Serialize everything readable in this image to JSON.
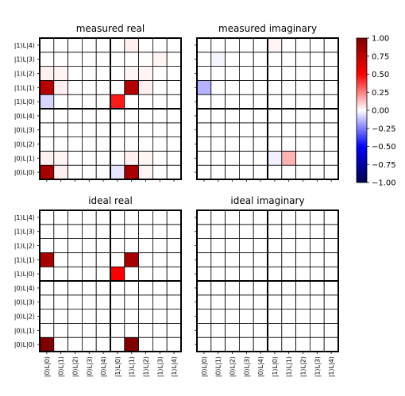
{
  "chart_data": {
    "type": "heatmap",
    "row_labels": [
      "|0⟩L|0⟩",
      "|0⟩L|1⟩",
      "|0⟩L|2⟩",
      "|0⟩L|3⟩",
      "|0⟩L|4⟩",
      "|1⟩L|0⟩",
      "|1⟩L|1⟩",
      "|1⟩L|2⟩",
      "|1⟩L|3⟩",
      "|1⟩L|4⟩"
    ],
    "col_labels": [
      "|0⟩L|0⟩",
      "|0⟩L|1⟩",
      "|0⟩L|2⟩",
      "|0⟩L|3⟩",
      "|0⟩L|4⟩",
      "|1⟩L|0⟩",
      "|1⟩L|1⟩",
      "|1⟩L|2⟩",
      "|1⟩L|3⟩",
      "|1⟩L|4⟩"
    ],
    "colorbar": {
      "colormap": "seismic",
      "vmin": -1.0,
      "vmax": 1.0,
      "ticks": [
        "1.00",
        "0.75",
        "0.50",
        "0.25",
        "0.00",
        "−0.25",
        "−0.50",
        "−0.75",
        "−1.00"
      ]
    },
    "panels": [
      {
        "title": "measured real",
        "values": [
          [
            0.85,
            0.03,
            0.0,
            0.0,
            0.0,
            -0.05,
            0.85,
            0.02,
            0.0,
            0.0
          ],
          [
            0.03,
            0.02,
            0.0,
            0.0,
            0.0,
            0.0,
            0.03,
            0.02,
            0.0,
            0.0
          ],
          [
            0.0,
            0.0,
            0.0,
            0.0,
            0.0,
            0.0,
            0.0,
            0.0,
            0.0,
            0.0
          ],
          [
            0.0,
            0.0,
            0.0,
            0.0,
            0.0,
            0.0,
            0.0,
            0.0,
            0.0,
            0.0
          ],
          [
            0.0,
            0.0,
            0.0,
            0.0,
            0.0,
            0.0,
            0.0,
            0.0,
            0.0,
            0.0
          ],
          [
            -0.08,
            0.0,
            0.0,
            0.0,
            0.0,
            0.45,
            0.0,
            0.0,
            0.0,
            0.0
          ],
          [
            0.78,
            0.03,
            0.0,
            0.0,
            0.0,
            0.0,
            0.8,
            0.03,
            0.0,
            0.0
          ],
          [
            0.03,
            0.02,
            0.0,
            0.0,
            0.0,
            0.0,
            0.02,
            0.02,
            0.0,
            0.0
          ],
          [
            0.0,
            0.0,
            0.0,
            0.0,
            0.0,
            0.0,
            0.0,
            0.0,
            0.02,
            0.0
          ],
          [
            0.0,
            0.0,
            0.0,
            0.0,
            0.0,
            0.0,
            0.03,
            0.0,
            0.0,
            0.0
          ]
        ]
      },
      {
        "title": "measured imaginary",
        "values": [
          [
            0.0,
            0.0,
            0.0,
            0.0,
            0.0,
            0.0,
            0.0,
            0.0,
            0.0,
            0.0
          ],
          [
            0.0,
            0.0,
            0.0,
            0.0,
            0.0,
            -0.03,
            0.15,
            0.0,
            0.0,
            0.0
          ],
          [
            0.0,
            0.0,
            0.0,
            0.0,
            0.0,
            0.0,
            0.0,
            0.0,
            0.0,
            0.0
          ],
          [
            0.0,
            0.0,
            0.0,
            0.0,
            0.0,
            0.0,
            0.0,
            0.0,
            0.0,
            0.0
          ],
          [
            0.0,
            0.0,
            0.0,
            0.0,
            0.0,
            0.0,
            0.0,
            0.0,
            0.0,
            0.0
          ],
          [
            0.0,
            0.0,
            0.0,
            0.0,
            0.0,
            0.0,
            0.0,
            0.0,
            0.0,
            0.0
          ],
          [
            -0.15,
            0.0,
            0.0,
            0.0,
            0.0,
            0.0,
            0.0,
            0.0,
            0.0,
            0.0
          ],
          [
            0.0,
            0.0,
            0.0,
            0.0,
            0.0,
            0.0,
            0.0,
            0.0,
            0.0,
            0.0
          ],
          [
            0.0,
            -0.02,
            0.0,
            0.0,
            0.0,
            0.0,
            0.0,
            0.0,
            0.0,
            0.0
          ],
          [
            0.0,
            0.0,
            0.0,
            0.0,
            0.0,
            0.02,
            0.0,
            0.0,
            0.0,
            0.0
          ]
        ]
      },
      {
        "title": "ideal real",
        "values": [
          [
            1.0,
            0.0,
            0.0,
            0.0,
            0.0,
            0.0,
            1.0,
            0.0,
            0.0,
            0.0
          ],
          [
            0.0,
            0.0,
            0.0,
            0.0,
            0.0,
            0.0,
            0.0,
            0.0,
            0.0,
            0.0
          ],
          [
            0.0,
            0.0,
            0.0,
            0.0,
            0.0,
            0.0,
            0.0,
            0.0,
            0.0,
            0.0
          ],
          [
            0.0,
            0.0,
            0.0,
            0.0,
            0.0,
            0.0,
            0.0,
            0.0,
            0.0,
            0.0
          ],
          [
            0.0,
            0.0,
            0.0,
            0.0,
            0.0,
            0.0,
            0.0,
            0.0,
            0.0,
            0.0
          ],
          [
            0.0,
            0.0,
            0.0,
            0.0,
            0.0,
            0.5,
            0.0,
            0.0,
            0.0,
            0.0
          ],
          [
            0.85,
            0.0,
            0.0,
            0.0,
            0.0,
            0.0,
            0.85,
            0.0,
            0.0,
            0.0
          ],
          [
            0.0,
            0.0,
            0.0,
            0.0,
            0.0,
            0.0,
            0.0,
            0.0,
            0.0,
            0.0
          ],
          [
            0.0,
            0.0,
            0.0,
            0.0,
            0.0,
            0.0,
            0.0,
            0.0,
            0.0,
            0.0
          ],
          [
            0.0,
            0.0,
            0.0,
            0.0,
            0.0,
            0.0,
            0.0,
            0.0,
            0.0,
            0.0
          ]
        ]
      },
      {
        "title": "ideal imaginary",
        "values": [
          [
            0,
            0,
            0,
            0,
            0,
            0,
            0,
            0,
            0,
            0
          ],
          [
            0,
            0,
            0,
            0,
            0,
            0,
            0,
            0,
            0,
            0
          ],
          [
            0,
            0,
            0,
            0,
            0,
            0,
            0,
            0,
            0,
            0
          ],
          [
            0,
            0,
            0,
            0,
            0,
            0,
            0,
            0,
            0,
            0
          ],
          [
            0,
            0,
            0,
            0,
            0,
            0,
            0,
            0,
            0,
            0
          ],
          [
            0,
            0,
            0,
            0,
            0,
            0,
            0,
            0,
            0,
            0
          ],
          [
            0,
            0,
            0,
            0,
            0,
            0,
            0,
            0,
            0,
            0
          ],
          [
            0,
            0,
            0,
            0,
            0,
            0,
            0,
            0,
            0,
            0
          ],
          [
            0,
            0,
            0,
            0,
            0,
            0,
            0,
            0,
            0,
            0
          ],
          [
            0,
            0,
            0,
            0,
            0,
            0,
            0,
            0,
            0,
            0
          ]
        ]
      }
    ]
  }
}
